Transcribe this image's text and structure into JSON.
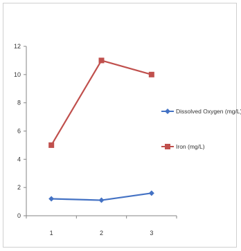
{
  "chart_data": {
    "type": "line",
    "title": "",
    "xlabel": "",
    "ylabel": "",
    "categories": [
      "1",
      "2",
      "3"
    ],
    "ylim": [
      0,
      12
    ],
    "y_ticks": [
      "0",
      "2",
      "4",
      "6",
      "8",
      "10",
      "12"
    ],
    "grid": false,
    "legend_position": "right",
    "series": [
      {
        "name": "Dissolved Oxygen (mg/L)",
        "values": [
          1.2,
          1.1,
          1.6
        ],
        "color": "#4472C4",
        "marker": "diamond"
      },
      {
        "name": "Iron (mg/L)",
        "values": [
          5.0,
          11.0,
          10.0
        ],
        "color": "#C0504D",
        "marker": "square"
      }
    ]
  }
}
